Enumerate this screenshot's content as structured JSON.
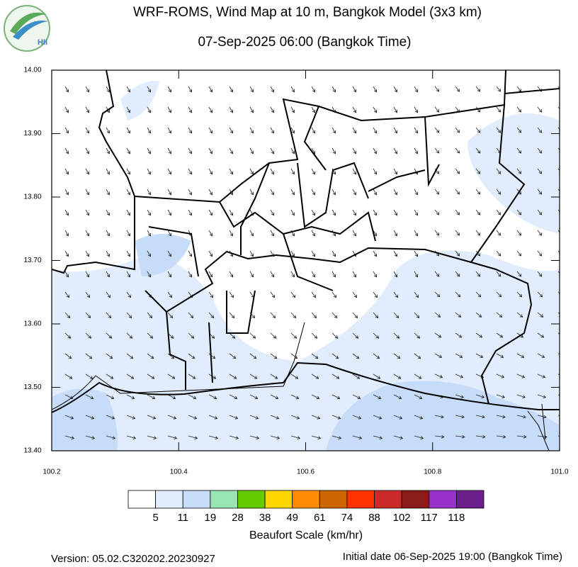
{
  "header": {
    "title": "WRF-ROMS, Wind Map at 10 m, Bangkok Model (3x3 km)",
    "subtitle": "07-Sep-2025 06:00 (Bangkok Time)",
    "logo": "HII"
  },
  "map": {
    "xlim": [
      100.2,
      {
        "value": 101,
        "label": "101.0"
      }
    ],
    "xticks": [
      100.2,
      100.4,
      100.6,
      100.8,
      {
        "value": 101,
        "label": "101.0"
      }
    ],
    "ylim": [
      13.4,
      14
    ],
    "yticks": [
      {
        "value": 13.4,
        "label": "13.40"
      },
      {
        "value": 13.5,
        "label": "13.50"
      },
      {
        "value": 13.6,
        "label": "13.60"
      },
      {
        "value": 13.7,
        "label": "13.70"
      },
      {
        "value": 13.8,
        "label": "13.80"
      },
      {
        "value": 13.9,
        "label": "13.90"
      },
      {
        "value": 14,
        "label": "14.00"
      }
    ]
  },
  "legend": {
    "title": "Beaufort Scale (km/hr)",
    "labels": [
      5,
      11,
      19,
      28,
      38,
      49,
      61,
      74,
      88,
      102,
      117,
      118
    ],
    "colors": [
      "#ffffff",
      "#e1edfc",
      "#c6dcf8",
      "#99e6b3",
      "#66cc00",
      "#ffd700",
      "#ff8c00",
      "#cc6600",
      "#ff3300",
      "#cc2929",
      "#8b1a1a",
      "#9932cc",
      "#6a1f8a"
    ]
  },
  "footer": {
    "version": "Version: 05.02.C320202.20230927",
    "initial_date": "Initial date 06-Sep-2025 19:00 (Bangkok Time)"
  }
}
